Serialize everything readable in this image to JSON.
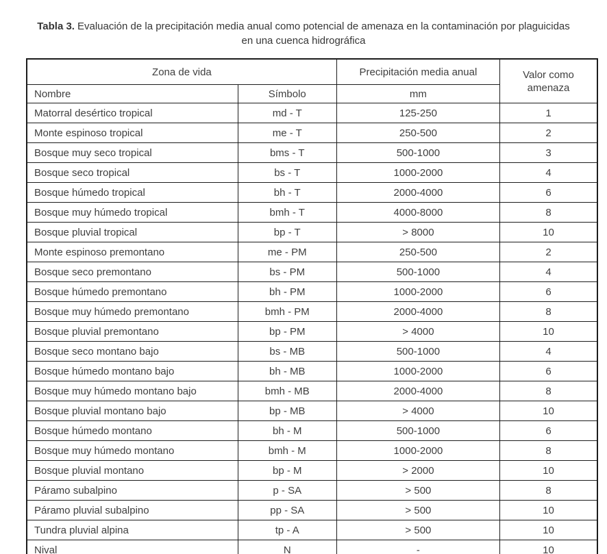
{
  "title": {
    "label": "Tabla 3.",
    "text": "Evaluación de la precipitación media anual como potencial de amenaza en la contaminación por plaguicidas en una cuenca hidrográfica"
  },
  "table": {
    "header": {
      "zona_de_vida": "Zona de vida",
      "precipitacion": "Precipitación media anual",
      "valor_amenaza": "Valor como amenaza",
      "nombre": "Nombre",
      "simbolo": "Símbolo",
      "mm": "mm"
    },
    "rows": [
      {
        "nombre": "Matorral desértico tropical",
        "simbolo": "md - T",
        "mm": "125-250",
        "valor": "1"
      },
      {
        "nombre": "Monte espinoso tropical",
        "simbolo": "me - T",
        "mm": "250-500",
        "valor": "2"
      },
      {
        "nombre": "Bosque muy seco tropical",
        "simbolo": "bms - T",
        "mm": "500-1000",
        "valor": "3"
      },
      {
        "nombre": "Bosque seco tropical",
        "simbolo": "bs - T",
        "mm": "1000-2000",
        "valor": "4"
      },
      {
        "nombre": "Bosque húmedo tropical",
        "simbolo": "bh - T",
        "mm": "2000-4000",
        "valor": "6"
      },
      {
        "nombre": "Bosque muy húmedo tropical",
        "simbolo": "bmh - T",
        "mm": "4000-8000",
        "valor": "8"
      },
      {
        "nombre": "Bosque pluvial tropical",
        "simbolo": "bp - T",
        "mm": "> 8000",
        "valor": "10"
      },
      {
        "nombre": "Monte espinoso premontano",
        "simbolo": "me - PM",
        "mm": "250-500",
        "valor": "2"
      },
      {
        "nombre": "Bosque seco premontano",
        "simbolo": "bs - PM",
        "mm": "500-1000",
        "valor": "4"
      },
      {
        "nombre": "Bosque húmedo premontano",
        "simbolo": "bh - PM",
        "mm": "1000-2000",
        "valor": "6"
      },
      {
        "nombre": "Bosque muy húmedo premontano",
        "simbolo": "bmh - PM",
        "mm": "2000-4000",
        "valor": "8"
      },
      {
        "nombre": "Bosque pluvial premontano",
        "simbolo": "bp - PM",
        "mm": "> 4000",
        "valor": "10"
      },
      {
        "nombre": "Bosque seco montano bajo",
        "simbolo": "bs - MB",
        "mm": "500-1000",
        "valor": "4"
      },
      {
        "nombre": "Bosque húmedo montano bajo",
        "simbolo": "bh - MB",
        "mm": "1000-2000",
        "valor": "6"
      },
      {
        "nombre": "Bosque muy húmedo montano bajo",
        "simbolo": "bmh - MB",
        "mm": "2000-4000",
        "valor": "8"
      },
      {
        "nombre": "Bosque pluvial montano bajo",
        "simbolo": "bp - MB",
        "mm": "> 4000",
        "valor": "10"
      },
      {
        "nombre": "Bosque húmedo montano",
        "simbolo": "bh - M",
        "mm": "500-1000",
        "valor": "6"
      },
      {
        "nombre": "Bosque muy húmedo montano",
        "simbolo": "bmh - M",
        "mm": "1000-2000",
        "valor": "8"
      },
      {
        "nombre": "Bosque pluvial montano",
        "simbolo": "bp - M",
        "mm": "> 2000",
        "valor": "10"
      },
      {
        "nombre": "Páramo subalpino",
        "simbolo": "p - SA",
        "mm": "> 500",
        "valor": "8"
      },
      {
        "nombre": "Páramo pluvial subalpino",
        "simbolo": "pp - SA",
        "mm": "> 500",
        "valor": "10"
      },
      {
        "nombre": "Tundra pluvial alpina",
        "simbolo": "tp - A",
        "mm": "> 500",
        "valor": "10"
      },
      {
        "nombre": "Nival",
        "simbolo": "N",
        "mm": "-",
        "valor": "10"
      }
    ]
  }
}
